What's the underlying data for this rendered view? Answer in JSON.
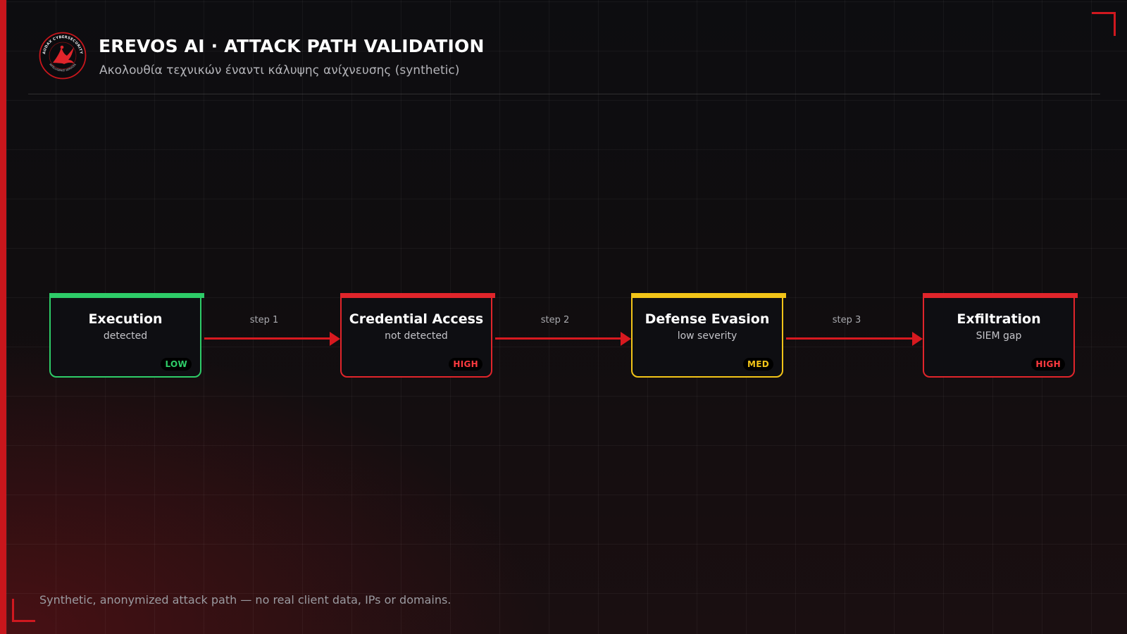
{
  "header": {
    "logo": {
      "icon": "phoenix-bird-emblem",
      "ring_text_top": "AUDAX CYBERSECURITY",
      "ring_text_bottom": "INTELLIGENCE SERVICES"
    },
    "title": "EREVOS AI · ATTACK PATH VALIDATION",
    "subtitle": "Ακολουθία τεχνικών έναντι κάλυψης ανίχνευσης (synthetic)"
  },
  "attack_path": {
    "nodes": [
      {
        "title": "Execution",
        "status": "detected",
        "severity": "LOW",
        "color": "#2ecc68"
      },
      {
        "title": "Credential Access",
        "status": "not detected",
        "severity": "HIGH",
        "color": "#e0252b"
      },
      {
        "title": "Defense Evasion",
        "status": "low severity",
        "severity": "MED",
        "color": "#f2c418"
      },
      {
        "title": "Exfiltration",
        "status": "SIEM gap",
        "severity": "HIGH",
        "color": "#e0252b"
      }
    ],
    "edges": [
      {
        "label": "step 1"
      },
      {
        "label": "step 2"
      },
      {
        "label": "step 3"
      }
    ]
  },
  "footer": {
    "note": "Synthetic, anonymized attack path — no real client data, IPs or domains."
  },
  "theme": {
    "accent": "#c8161c",
    "background": "#0c0c0f"
  }
}
